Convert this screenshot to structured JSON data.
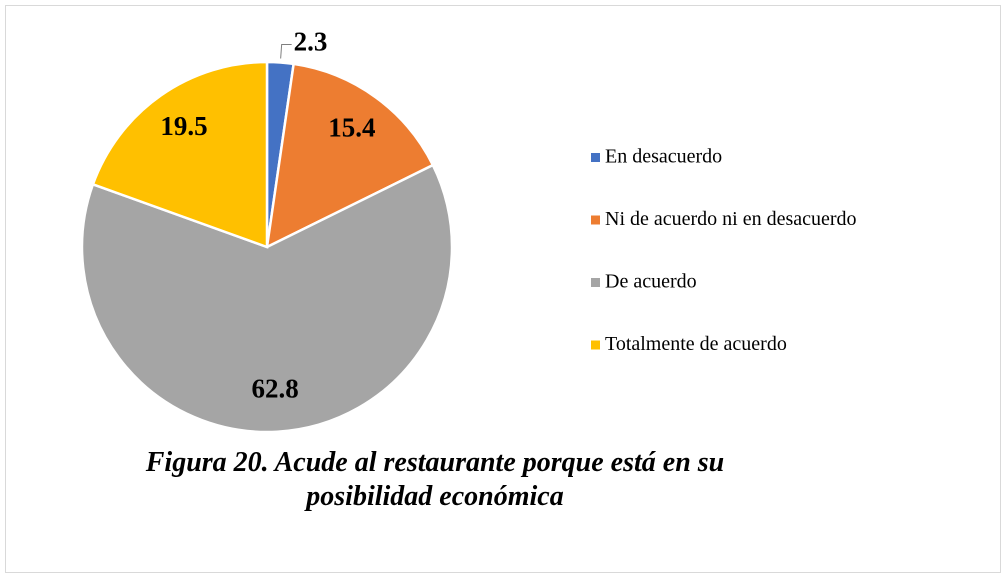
{
  "chart_data": {
    "type": "pie",
    "title": "Figura 20. Acude al restaurante porque está en su posibilidad económica",
    "categories": [
      "En desacuerdo",
      "Ni de acuerdo ni en desacuerdo",
      "De acuerdo",
      "Totalmente de acuerdo"
    ],
    "values": [
      2.3,
      15.4,
      62.8,
      19.5
    ],
    "colors": [
      "#4472c4",
      "#ed7d31",
      "#a5a5a5",
      "#ffc000"
    ],
    "legend": "right"
  }
}
